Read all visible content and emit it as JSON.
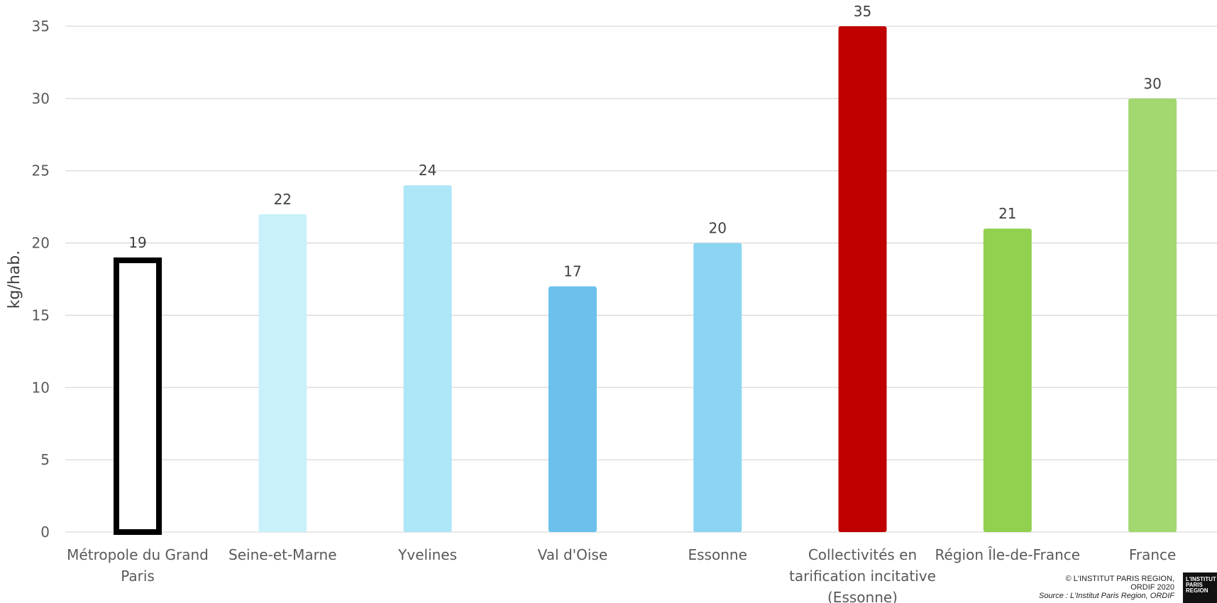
{
  "chart_data": {
    "type": "bar",
    "ylabel": "kg/hab.",
    "ylim": [
      0,
      35
    ],
    "yticks": [
      0,
      5,
      10,
      15,
      20,
      25,
      30,
      35
    ],
    "grid": true,
    "categories": [
      [
        "Métropole du Grand",
        "Paris"
      ],
      [
        "Seine-et-Marne"
      ],
      [
        "Yvelines"
      ],
      [
        "Val d'Oise"
      ],
      [
        "Essonne"
      ],
      [
        "Collectivités en",
        "tarification incitative",
        "(Essonne)"
      ],
      [
        "Région Île-de-France"
      ],
      [
        "France"
      ]
    ],
    "values": [
      19,
      22,
      24,
      17,
      20,
      35,
      21,
      30
    ],
    "data_labels": [
      "19",
      "22",
      "24",
      "17",
      "20",
      "35",
      "21",
      "30"
    ],
    "colors": [
      "#ffffff",
      "#c9f1fa",
      "#ade6f7",
      "#6bc1ec",
      "#8bd5f3",
      "#c00000",
      "#92d050",
      "#a3d871"
    ],
    "outline_color": "#000000"
  },
  "credit": {
    "line1": "© L'INSTITUT PARIS REGION,",
    "line2": "ORDIF 2020",
    "source": "Source : L'Institut Paris Region, ORDIF"
  },
  "logo": {
    "line1": "L'INSTITUT",
    "line2": "PARIS",
    "line3": "REGION"
  }
}
